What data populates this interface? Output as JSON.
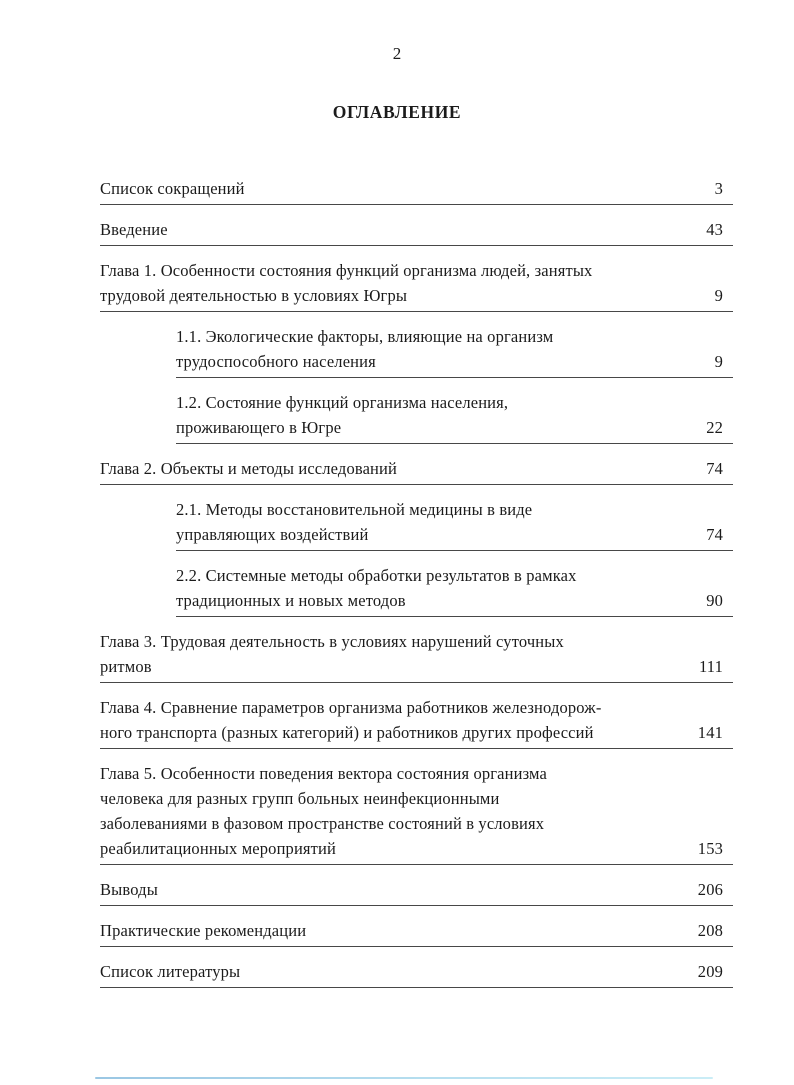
{
  "page": {
    "number": "2",
    "title": "ОГЛАВЛЕНИЕ"
  },
  "toc": {
    "entries": [
      {
        "level": 0,
        "lines": [
          "Список сокращений"
        ],
        "page": "3"
      },
      {
        "level": 0,
        "lines": [
          "Введение"
        ],
        "page": "43"
      },
      {
        "level": 0,
        "lines": [
          "Глава 1. Особенности состояния функций организма людей, занятых",
          "трудовой деятельностью в условиях Югры"
        ],
        "page": "9"
      },
      {
        "level": 1,
        "lines": [
          "1.1. Экологические факторы, влияющие на организм",
          "трудоспособного населения"
        ],
        "page": "9"
      },
      {
        "level": 1,
        "lines": [
          "1.2. Состояние функций организма населения,",
          "проживающего в Югре"
        ],
        "page": "22"
      },
      {
        "level": 0,
        "lines": [
          "Глава 2. Объекты и методы исследований"
        ],
        "page": "74"
      },
      {
        "level": 1,
        "lines": [
          "2.1. Методы восстановительной медицины в виде",
          "управляющих воздействий"
        ],
        "page": "74"
      },
      {
        "level": 1,
        "lines": [
          "2.2. Системные методы обработки результатов в рамках",
          "традиционных и новых методов"
        ],
        "page": "90"
      },
      {
        "level": 0,
        "lines": [
          "Глава 3. Трудовая деятельность в условиях нарушений суточных",
          "ритмов"
        ],
        "page": "111"
      },
      {
        "level": 0,
        "lines": [
          "Глава 4. Сравнение параметров организма работников железнодорож-",
          "ного транспорта (разных категорий) и работников других профессий"
        ],
        "page": "141"
      },
      {
        "level": 0,
        "lines": [
          "Глава 5. Особенности поведения вектора состояния организма",
          "человека для разных групп больных неинфекционными",
          "заболеваниями в фазовом пространстве состояний в условиях",
          "реабилитационных мероприятий"
        ],
        "page": "153"
      },
      {
        "level": 0,
        "lines": [
          "Выводы"
        ],
        "page": "206"
      },
      {
        "level": 0,
        "lines": [
          "Практические рекомендации"
        ],
        "page": "208"
      },
      {
        "level": 0,
        "lines": [
          "Список литературы"
        ],
        "page": "209"
      }
    ]
  },
  "colors": {
    "text": "#1b1b1b",
    "rule": "#282828",
    "bottom_scan_line": "#9ed4ea"
  }
}
